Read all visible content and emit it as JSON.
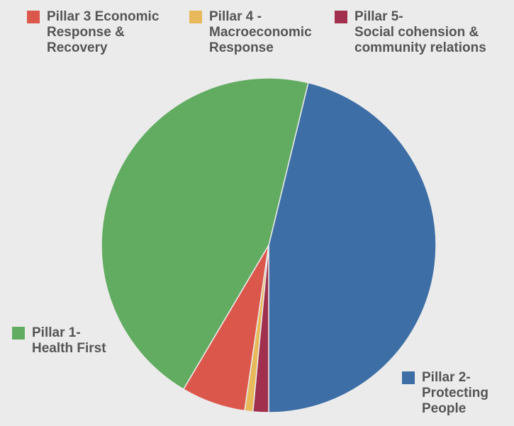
{
  "chart_data": {
    "type": "pie",
    "slices": [
      {
        "name": "Pillar 2- Protecting People",
        "lines": [
          "Pillar 2-",
          "Protecting",
          "People"
        ],
        "value": 46.2,
        "color": "#3d6ea5"
      },
      {
        "name": "Pillar 1- Health First",
        "lines": [
          "Pillar 1-",
          "Health First"
        ],
        "value": 45.3,
        "color": "#62ac62"
      },
      {
        "name": "Pillar 3 Economic Response & Recovery",
        "lines": [
          "Pillar 3 Economic",
          "Response &",
          "Recovery"
        ],
        "value": 6.2,
        "color": "#dc574b"
      },
      {
        "name": "Pillar 4 - Macroeconomic Response",
        "lines": [
          "Pillar 4 -",
          "Macroeconomic",
          "Response"
        ],
        "value": 0.8,
        "color": "#e8b95a"
      },
      {
        "name": "Pillar 5- Social cohension & community relations",
        "lines": [
          "Pillar 5-",
          "Social cohension &",
          "community relations"
        ],
        "value": 1.5,
        "color": "#a0304d"
      }
    ]
  }
}
